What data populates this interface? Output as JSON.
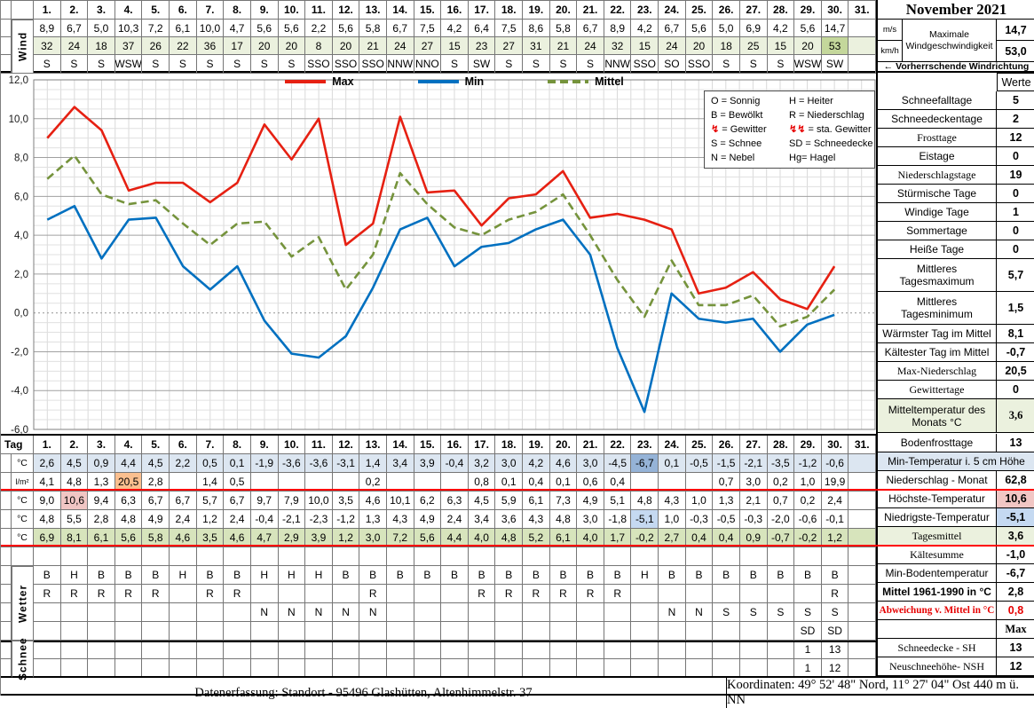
{
  "title": "November 2021",
  "days": [
    "1.",
    "2.",
    "3.",
    "4.",
    "5.",
    "6.",
    "7.",
    "8.",
    "9.",
    "10.",
    "11.",
    "12.",
    "13.",
    "14.",
    "15.",
    "16.",
    "17.",
    "18.",
    "19.",
    "20.",
    "21.",
    "22.",
    "23.",
    "24.",
    "25.",
    "26.",
    "27.",
    "28.",
    "29.",
    "30.",
    "31."
  ],
  "colors": {
    "light_blue": "#dce6f1",
    "mid_blue": "#95b3d7",
    "light_blue2": "#c5d9f1",
    "green": "#d7e4bc",
    "light_green": "#ebf1de",
    "dark_green": "#c4d79b",
    "orange": "#fabf8f",
    "pink": "#f1c6c4",
    "red_line": "#ff0000"
  },
  "wind": {
    "label": "Wind",
    "ms_unit": "m/s",
    "kmh_unit": "km/h",
    "ms": [
      "8,9",
      "6,7",
      "5,0",
      "10,3",
      "7,2",
      "6,1",
      "10,0",
      "4,7",
      "5,6",
      "5,6",
      "2,2",
      "5,6",
      "5,8",
      "6,7",
      "7,5",
      "4,2",
      "6,4",
      "7,5",
      "8,6",
      "5,8",
      "6,7",
      "8,9",
      "4,2",
      "6,7",
      "5,6",
      "5,0",
      "6,9",
      "4,2",
      "5,6",
      "14,7"
    ],
    "kmh": [
      "32",
      "24",
      "18",
      "37",
      "26",
      "22",
      "36",
      "17",
      "20",
      "20",
      "8",
      "20",
      "21",
      "24",
      "27",
      "15",
      "23",
      "27",
      "31",
      "21",
      "24",
      "32",
      "15",
      "24",
      "20",
      "18",
      "25",
      "15",
      "20",
      "53"
    ],
    "kmh_highlight": {
      "30": "dark_green"
    },
    "dir": [
      "S",
      "S",
      "S",
      "WSW",
      "S",
      "S",
      "S",
      "S",
      "S",
      "S",
      "SSO",
      "SSO",
      "SSO",
      "NNW",
      "NNO",
      "S",
      "SW",
      "S",
      "S",
      "S",
      "S",
      "NNW",
      "SSO",
      "SO",
      "SSO",
      "S",
      "S",
      "S",
      "WSW",
      "SW"
    ],
    "max_label_line1": "Maximale",
    "max_label_line2": "Windgeschwindigkeit",
    "max_ms": "14,7",
    "max_kmh": "53,0",
    "dir_note": "←  Vorherrschende Windrichtung"
  },
  "chart_data": {
    "type": "line",
    "x": [
      1,
      2,
      3,
      4,
      5,
      6,
      7,
      8,
      9,
      10,
      11,
      12,
      13,
      14,
      15,
      16,
      17,
      18,
      19,
      20,
      21,
      22,
      23,
      24,
      25,
      26,
      27,
      28,
      29,
      30
    ],
    "xlabel": "Tag",
    "ylabel": "°C",
    "ylim": [
      -6,
      12
    ],
    "ytick": 2,
    "ytick_minor": 0.5,
    "grid": true,
    "zero_line": "dotted",
    "legend_position": "top-center",
    "series": [
      {
        "name": "Max",
        "color": "#e62012",
        "dash": null,
        "values": [
          9.0,
          10.6,
          9.4,
          6.3,
          6.7,
          6.7,
          5.7,
          6.7,
          9.7,
          7.9,
          10.0,
          3.5,
          4.6,
          10.1,
          6.2,
          6.3,
          4.5,
          5.9,
          6.1,
          7.3,
          4.9,
          5.1,
          4.8,
          4.3,
          1.0,
          1.3,
          2.1,
          0.7,
          0.2,
          2.4
        ]
      },
      {
        "name": "Min",
        "color": "#0070c0",
        "dash": null,
        "values": [
          4.8,
          5.5,
          2.8,
          4.8,
          4.9,
          2.4,
          1.2,
          2.4,
          -0.4,
          -2.1,
          -2.3,
          -1.2,
          1.3,
          4.3,
          4.9,
          2.4,
          3.4,
          3.6,
          4.3,
          4.8,
          3.0,
          -1.8,
          -5.1,
          1.0,
          -0.3,
          -0.5,
          -0.3,
          -2.0,
          -0.6,
          -0.1
        ]
      },
      {
        "name": "Mittel",
        "color": "#75933c",
        "dash": [
          9,
          5
        ],
        "values": [
          6.9,
          8.1,
          6.1,
          5.6,
          5.8,
          4.6,
          3.5,
          4.6,
          4.7,
          2.9,
          3.9,
          1.2,
          3.0,
          7.2,
          5.6,
          4.4,
          4.0,
          4.8,
          5.2,
          6.1,
          4.0,
          1.7,
          -0.2,
          2.7,
          0.4,
          0.4,
          0.9,
          -0.7,
          -0.2,
          1.2
        ]
      }
    ]
  },
  "symbol_legend": {
    "rows": [
      [
        {
          "t": "O = Sonnig"
        },
        {
          "t": "H = Heiter"
        }
      ],
      [
        {
          "t": "B = Bewölkt"
        },
        {
          "t": "R = Niederschlag"
        }
      ],
      [
        {
          "s": "↯",
          "t": "= Gewitter"
        },
        {
          "s": "↯↯",
          "t": "= sta. Gewitter"
        }
      ],
      [
        {
          "t": "S = Schnee"
        },
        {
          "t": "SD = Schneedecke"
        }
      ],
      [
        {
          "t": "N = Nebel"
        },
        {
          "t": "Hg= Hagel"
        }
      ]
    ]
  },
  "daily": {
    "tag_label": "Tag",
    "wetter_label": "Wetter",
    "schnee_label": "Schnee",
    "rows": [
      {
        "name": "min-temp-5cm",
        "unit": "°C",
        "bg": "light_blue",
        "hl": {
          "23": "mid_blue"
        },
        "values": [
          "2,6",
          "4,5",
          "0,9",
          "4,4",
          "4,5",
          "2,2",
          "0,5",
          "0,1",
          "-1,9",
          "-3,6",
          "-3,6",
          "-3,1",
          "1,4",
          "3,4",
          "3,9",
          "-0,4",
          "3,2",
          "3,0",
          "4,2",
          "4,6",
          "3,0",
          "-4,5",
          "-6,7",
          "0,1",
          "-0,5",
          "-1,5",
          "-2,1",
          "-3,5",
          "-1,2",
          "-0,6"
        ]
      },
      {
        "name": "precipitation",
        "unit": "l/m²",
        "unit_small": true,
        "hl": {
          "4": "orange"
        },
        "values": [
          "4,1",
          "4,8",
          "1,3",
          "20,5",
          "2,8",
          "",
          "1,4",
          "0,5",
          "",
          "",
          "",
          "",
          "0,2",
          "",
          "",
          "",
          "0,8",
          "0,1",
          "0,4",
          "0,1",
          "0,6",
          "0,4",
          "",
          "",
          "",
          "0,7",
          "3,0",
          "0,2",
          "1,0",
          "19,9"
        ]
      },
      {
        "name": "max-temp",
        "unit": "°C",
        "hl": {
          "2": "pink"
        },
        "values": [
          "9,0",
          "10,6",
          "9,4",
          "6,3",
          "6,7",
          "6,7",
          "5,7",
          "6,7",
          "9,7",
          "7,9",
          "10,0",
          "3,5",
          "4,6",
          "10,1",
          "6,2",
          "6,3",
          "4,5",
          "5,9",
          "6,1",
          "7,3",
          "4,9",
          "5,1",
          "4,8",
          "4,3",
          "1,0",
          "1,3",
          "2,1",
          "0,7",
          "0,2",
          "2,4"
        ]
      },
      {
        "name": "min-temp",
        "unit": "°C",
        "hl": {
          "23": "light_blue2"
        },
        "values": [
          "4,8",
          "5,5",
          "2,8",
          "4,8",
          "4,9",
          "2,4",
          "1,2",
          "2,4",
          "-0,4",
          "-2,1",
          "-2,3",
          "-1,2",
          "1,3",
          "4,3",
          "4,9",
          "2,4",
          "3,4",
          "3,6",
          "4,3",
          "4,8",
          "3,0",
          "-1,8",
          "-5,1",
          "1,0",
          "-0,3",
          "-0,5",
          "-0,3",
          "-2,0",
          "-0,6",
          "-0,1"
        ]
      },
      {
        "name": "daily-mean",
        "unit": "°C",
        "bg": "green",
        "values": [
          "6,9",
          "8,1",
          "6,1",
          "5,6",
          "5,8",
          "4,6",
          "3,5",
          "4,6",
          "4,7",
          "2,9",
          "3,9",
          "1,2",
          "3,0",
          "7,2",
          "5,6",
          "4,4",
          "4,0",
          "4,8",
          "5,2",
          "6,1",
          "4,0",
          "1,7",
          "-0,2",
          "2,7",
          "0,4",
          "0,4",
          "0,9",
          "-0,7",
          "-0,2",
          "1,2"
        ]
      },
      {
        "name": "spacer",
        "unit": "",
        "values": []
      },
      {
        "name": "weather-condition",
        "unit": "",
        "values": [
          "B",
          "H",
          "B",
          "B",
          "B",
          "H",
          "B",
          "B",
          "H",
          "H",
          "H",
          "B",
          "B",
          "B",
          "B",
          "B",
          "B",
          "B",
          "B",
          "B",
          "B",
          "B",
          "H",
          "B",
          "B",
          "B",
          "B",
          "B",
          "B",
          "B"
        ]
      },
      {
        "name": "weather-precip",
        "unit": "",
        "values": [
          "R",
          "R",
          "R",
          "R",
          "R",
          "",
          "R",
          "R",
          "",
          "",
          "",
          "",
          "R",
          "",
          "",
          "",
          "R",
          "R",
          "R",
          "R",
          "R",
          "R",
          "",
          "",
          "",
          "",
          "",
          "",
          "",
          "R"
        ]
      },
      {
        "name": "weather-fog-snow",
        "unit": "",
        "values": [
          "",
          "",
          "",
          "",
          "",
          "",
          "",
          "",
          "N",
          "N",
          "N",
          "N",
          "N",
          "",
          "",
          "",
          "",
          "",
          "",
          "",
          "",
          "",
          "",
          "N",
          "N",
          "S",
          "S",
          "S",
          "S",
          "S"
        ]
      },
      {
        "name": "weather-snowcover",
        "unit": "",
        "values": [
          "",
          "",
          "",
          "",
          "",
          "",
          "",
          "",
          "",
          "",
          "",
          "",
          "",
          "",
          "",
          "",
          "",
          "",
          "",
          "",
          "",
          "",
          "",
          "",
          "",
          "",
          "",
          "",
          "SD",
          "SD"
        ]
      },
      {
        "name": "snow-depth",
        "unit": "",
        "values": [
          "",
          "",
          "",
          "",
          "",
          "",
          "",
          "",
          "",
          "",
          "",
          "",
          "",
          "",
          "",
          "",
          "",
          "",
          "",
          "",
          "",
          "",
          "",
          "",
          "",
          "",
          "",
          "",
          "1",
          "13"
        ]
      },
      {
        "name": "new-snow",
        "unit": "",
        "values": [
          "",
          "",
          "",
          "",
          "",
          "",
          "",
          "",
          "",
          "",
          "",
          "",
          "",
          "",
          "",
          "",
          "",
          "",
          "",
          "",
          "",
          "",
          "",
          "",
          "",
          "",
          "",
          "",
          "1",
          "12"
        ]
      }
    ]
  },
  "sidebar": {
    "werte_header": "Werte",
    "top_rows": [
      {
        "type": "header",
        "value": "Werte"
      },
      {
        "label": "Schneefalltage",
        "value": "5"
      },
      {
        "label": "Schneedeckentage",
        "value": "2"
      },
      {
        "label": "Frosttage",
        "value": "12",
        "serif": true
      },
      {
        "label": "Eistage",
        "value": "0"
      },
      {
        "label": "Niederschlagstage",
        "value": "19",
        "serif": true
      },
      {
        "label": "Stürmische Tage",
        "value": "0"
      },
      {
        "label": "Windige Tage",
        "value": "1"
      },
      {
        "label": "Sommertage",
        "value": "0"
      },
      {
        "label": "Heiße Tage",
        "value": "0"
      },
      {
        "label": "Mittleres",
        "label2": "Tagesmaximum",
        "value": "5,7"
      },
      {
        "label": "Mittleres",
        "label2": "Tagesminimum",
        "value": "1,5"
      },
      {
        "label": "Wärmster Tag im Mittel",
        "value": "8,1"
      },
      {
        "label": "Kältester Tag im Mittel",
        "value": "-0,7"
      },
      {
        "label": "Max-Niederschlag",
        "value": "20,5",
        "serif": true
      },
      {
        "label": "Gewittertage",
        "value": "0",
        "serif": true
      },
      {
        "label": "Mitteltemperatur des",
        "label2": "Monats °C",
        "value": "3,6",
        "bg": "light_green",
        "serif_value": true
      }
    ],
    "bottom_rows": [
      {
        "label": "Bodenfrosttage",
        "value": "13"
      },
      {
        "type": "span",
        "label": "Min-Temperatur i. 5 cm Höhe",
        "bg": "light_blue"
      },
      {
        "label": "Niederschlag - Monat",
        "value": "62,8"
      },
      {
        "label": "Höchste-Temperatur",
        "value": "10,6",
        "value_bg": "pink"
      },
      {
        "label": "Niedrigste-Temperatur",
        "value": "-5,1",
        "value_bg": "light_blue2"
      },
      {
        "label": "Tagesmittel",
        "value": "3,6",
        "bg": "light_green",
        "serif": true
      },
      {
        "label": "Kältesumme",
        "value": "-1,0",
        "serif": true
      },
      {
        "label": "Min-Bodentemperatur",
        "value": "-6,7"
      },
      {
        "label": "Mittel 1961-1990 in °C",
        "value": "2,8",
        "bold": true
      },
      {
        "label": "Abweichung v. Mittel in °C",
        "value": "0,8",
        "red": true,
        "serif": true,
        "small": true
      },
      {
        "label": "",
        "value": "Max",
        "serif_value": true
      },
      {
        "label": "Schneedecke -   SH",
        "value": "13",
        "serif": true
      },
      {
        "label": "Neuschneehöhe- NSH",
        "value": "12",
        "serif": true
      }
    ]
  },
  "footer": {
    "left": "Datenerfassung:  Standort -  95496  Glashütten, Altenhimmelstr. 37",
    "right": "Koordinaten:  49° 52' 48\" Nord,   11° 27' 04\" Ost   440 m ü. NN"
  }
}
